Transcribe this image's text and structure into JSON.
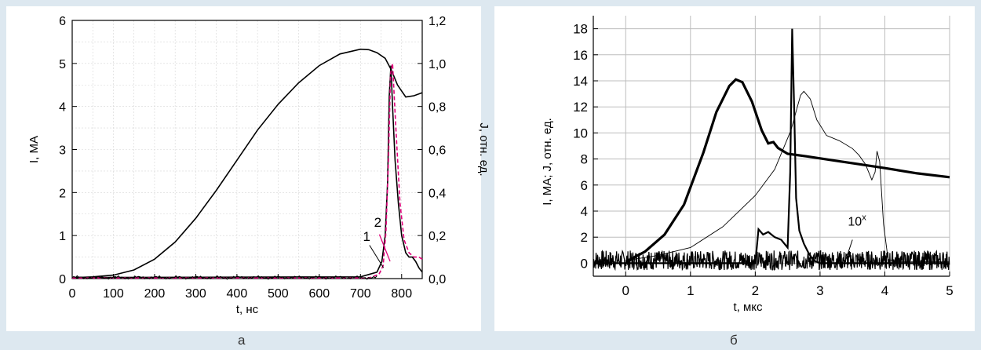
{
  "chart_data": [
    {
      "panel": "а",
      "type": "line",
      "xlabel": "t, нс",
      "ylabel": "I, МА",
      "y2label": "J, отн. ед.",
      "xlim": [
        0,
        850
      ],
      "ylim": [
        0,
        6
      ],
      "y2lim": [
        0,
        1.2
      ],
      "xticks": [
        0,
        100,
        200,
        300,
        400,
        500,
        600,
        700,
        800
      ],
      "yticks": [
        0,
        1,
        2,
        3,
        4,
        5,
        6
      ],
      "ytick_labels": [
        "0",
        "1",
        "2",
        "3",
        "4",
        "5",
        "6"
      ],
      "y2ticks": [
        0,
        0.2,
        0.4,
        0.6,
        0.8,
        1.0,
        1.2
      ],
      "y2tick_labels": [
        "0,0",
        "0,2",
        "0,4",
        "0,6",
        "0,8",
        "1,0",
        "1,2"
      ],
      "grid": true,
      "annotations": [
        "1",
        "2"
      ],
      "series": [
        {
          "axis": "left",
          "color": "#000000",
          "x": [
            0,
            50,
            100,
            150,
            200,
            250,
            300,
            350,
            400,
            450,
            500,
            550,
            600,
            650,
            700,
            720,
            740,
            760,
            775,
            790,
            810,
            830,
            850
          ],
          "y": [
            0.02,
            0.04,
            0.08,
            0.2,
            0.45,
            0.85,
            1.4,
            2.05,
            2.75,
            3.45,
            4.05,
            4.55,
            4.95,
            5.22,
            5.33,
            5.32,
            5.25,
            5.12,
            4.85,
            4.5,
            4.22,
            4.25,
            4.32
          ]
        },
        {
          "axis": "right",
          "color": "#000000",
          "x": [
            0,
            700,
            740,
            752,
            760,
            766,
            770,
            774,
            778,
            784,
            792,
            800,
            810,
            818,
            826,
            834,
            842,
            850
          ],
          "y": [
            0.005,
            0.008,
            0.03,
            0.08,
            0.2,
            0.45,
            0.85,
            0.99,
            0.8,
            0.55,
            0.35,
            0.2,
            0.12,
            0.1,
            0.1,
            0.08,
            0.05,
            0.03
          ]
        },
        {
          "axis": "right",
          "color": "#e0007a",
          "dash": true,
          "x": [
            0,
            720,
            745,
            755,
            762,
            768,
            773,
            778,
            786,
            796,
            806,
            818,
            830,
            842,
            850
          ],
          "y": [
            0.003,
            0.003,
            0.02,
            0.06,
            0.22,
            0.55,
            0.95,
            1.0,
            0.7,
            0.35,
            0.18,
            0.12,
            0.1,
            0.1,
            0.09
          ]
        }
      ]
    },
    {
      "panel": "б",
      "type": "line",
      "xlabel": "t, мкс",
      "ylabel": "I, МА; J, отн. ед.",
      "xlim": [
        -0.5,
        5
      ],
      "ylim": [
        -1,
        19
      ],
      "xticks": [
        0,
        1,
        2,
        3,
        4,
        5
      ],
      "yticks": [
        0,
        2,
        4,
        6,
        8,
        10,
        12,
        14,
        16,
        18
      ],
      "grid": true,
      "annotations": [
        "10^x"
      ],
      "series": [
        {
          "width": "thick",
          "color": "#000000",
          "x": [
            0,
            0.3,
            0.6,
            0.9,
            1.2,
            1.4,
            1.6,
            1.7,
            1.8,
            1.95,
            2.1,
            2.2,
            2.28,
            2.35,
            2.5,
            2.8,
            3.2,
            3.6,
            4.0,
            4.5,
            5.0
          ],
          "y": [
            0.1,
            0.9,
            2.2,
            4.5,
            8.5,
            11.6,
            13.6,
            14.1,
            13.9,
            12.4,
            10.2,
            9.2,
            9.3,
            8.85,
            8.4,
            8.2,
            7.9,
            7.6,
            7.3,
            6.9,
            6.6
          ]
        },
        {
          "width": "thin",
          "color": "#000000",
          "x": [
            0,
            0.5,
            1.0,
            1.5,
            2.0,
            2.3,
            2.55,
            2.7,
            2.75,
            2.85,
            2.95,
            3.1,
            3.3,
            3.5,
            3.6,
            3.7,
            3.8,
            3.85,
            3.88,
            3.92,
            3.98,
            4.05,
            4.2,
            5.0
          ],
          "y": [
            0.2,
            0.6,
            1.2,
            2.8,
            5.2,
            7.2,
            10.2,
            12.9,
            13.2,
            12.6,
            11.0,
            9.8,
            9.4,
            8.8,
            8.3,
            7.6,
            6.4,
            7.0,
            8.6,
            7.8,
            3.0,
            0.3,
            0.1,
            0.1
          ]
        },
        {
          "width": "medium",
          "color": "#000000",
          "x": [
            -0.5,
            2.0,
            2.05,
            2.12,
            2.2,
            2.3,
            2.4,
            2.5,
            2.54,
            2.57,
            2.6,
            2.63,
            2.68,
            2.75,
            2.82,
            2.9,
            3.0,
            3.2,
            5.0
          ],
          "y": [
            0,
            0,
            2.6,
            2.2,
            2.4,
            2.0,
            1.8,
            1.2,
            7.0,
            18.0,
            12.0,
            5.0,
            2.5,
            1.5,
            0.8,
            0.2,
            0.0,
            0.0,
            0.0
          ]
        }
      ]
    }
  ],
  "captions": {
    "a": "а",
    "b": "б"
  }
}
